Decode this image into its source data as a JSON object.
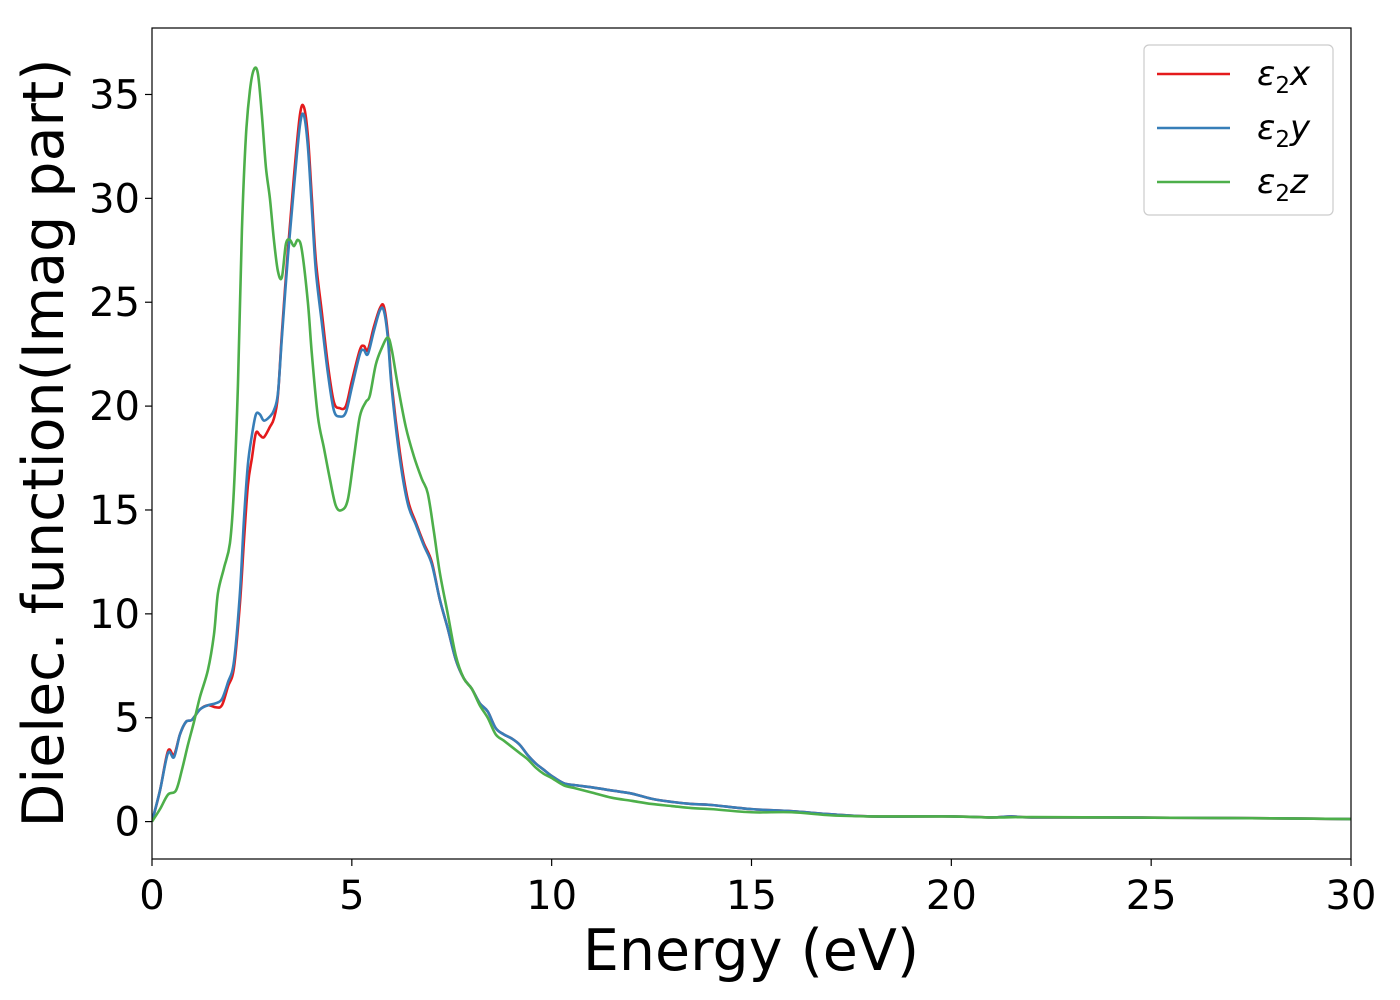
{
  "chart_data": {
    "type": "line",
    "xlabel": "Energy (eV)",
    "ylabel": "Dielec. function(Imag part)",
    "xlim": [
      0,
      30
    ],
    "ylim": [
      -1.8,
      38.2
    ],
    "xticks": [
      0,
      5,
      10,
      15,
      20,
      25,
      30
    ],
    "yticks": [
      0,
      5,
      10,
      15,
      20,
      25,
      30,
      35
    ],
    "xtick_labels": [
      "0",
      "5",
      "10",
      "15",
      "20",
      "25",
      "30"
    ],
    "ytick_labels": [
      "0",
      "5",
      "10",
      "15",
      "20",
      "25",
      "30",
      "35"
    ],
    "grid": false,
    "legend_position": "top-right",
    "series": [
      {
        "name": "ε2x",
        "legend": {
          "symbol": "ε",
          "sub": "2",
          "var": "x"
        },
        "color": "#e41a1c",
        "points": [
          [
            0,
            0
          ],
          [
            0.2,
            1.5
          ],
          [
            0.4,
            3.4
          ],
          [
            0.55,
            3.2
          ],
          [
            0.7,
            4.2
          ],
          [
            0.85,
            4.8
          ],
          [
            1.0,
            4.9
          ],
          [
            1.2,
            5.4
          ],
          [
            1.4,
            5.6
          ],
          [
            1.6,
            5.5
          ],
          [
            1.75,
            5.6
          ],
          [
            1.9,
            6.5
          ],
          [
            2.05,
            7.4
          ],
          [
            2.2,
            10.5
          ],
          [
            2.3,
            13.5
          ],
          [
            2.4,
            16.2
          ],
          [
            2.5,
            17.5
          ],
          [
            2.6,
            18.7
          ],
          [
            2.7,
            18.6
          ],
          [
            2.8,
            18.5
          ],
          [
            2.95,
            19.0
          ],
          [
            3.05,
            19.4
          ],
          [
            3.15,
            20.5
          ],
          [
            3.25,
            23.5
          ],
          [
            3.4,
            27.5
          ],
          [
            3.55,
            31.0
          ],
          [
            3.7,
            34.0
          ],
          [
            3.8,
            34.4
          ],
          [
            3.9,
            33.0
          ],
          [
            4.0,
            30.0
          ],
          [
            4.1,
            27.0
          ],
          [
            4.25,
            24.5
          ],
          [
            4.4,
            22.0
          ],
          [
            4.55,
            20.2
          ],
          [
            4.7,
            19.9
          ],
          [
            4.85,
            20.0
          ],
          [
            5.0,
            21.2
          ],
          [
            5.2,
            22.7
          ],
          [
            5.3,
            22.9
          ],
          [
            5.4,
            22.7
          ],
          [
            5.55,
            23.8
          ],
          [
            5.7,
            24.7
          ],
          [
            5.8,
            24.8
          ],
          [
            5.9,
            23.5
          ],
          [
            6.0,
            21.0
          ],
          [
            6.2,
            17.8
          ],
          [
            6.4,
            15.5
          ],
          [
            6.6,
            14.4
          ],
          [
            6.8,
            13.4
          ],
          [
            7.0,
            12.5
          ],
          [
            7.2,
            10.7
          ],
          [
            7.4,
            9.3
          ],
          [
            7.6,
            7.8
          ],
          [
            7.8,
            6.9
          ],
          [
            8.0,
            6.4
          ],
          [
            8.2,
            5.7
          ],
          [
            8.4,
            5.3
          ],
          [
            8.6,
            4.5
          ],
          [
            8.8,
            4.2
          ],
          [
            9.0,
            4.0
          ],
          [
            9.2,
            3.7
          ],
          [
            9.4,
            3.2
          ],
          [
            9.6,
            2.8
          ],
          [
            9.8,
            2.5
          ],
          [
            10.0,
            2.2
          ],
          [
            10.3,
            1.85
          ],
          [
            10.6,
            1.75
          ],
          [
            11.0,
            1.65
          ],
          [
            11.5,
            1.5
          ],
          [
            12.0,
            1.35
          ],
          [
            12.5,
            1.1
          ],
          [
            13.0,
            0.95
          ],
          [
            13.5,
            0.85
          ],
          [
            14.0,
            0.8
          ],
          [
            15.0,
            0.6
          ],
          [
            16.0,
            0.5
          ],
          [
            17.0,
            0.35
          ],
          [
            18.0,
            0.25
          ],
          [
            20.0,
            0.25
          ],
          [
            21.0,
            0.2
          ],
          [
            21.5,
            0.25
          ],
          [
            22.0,
            0.2
          ],
          [
            24.0,
            0.2
          ],
          [
            26.0,
            0.18
          ],
          [
            28.0,
            0.16
          ],
          [
            30.0,
            0.12
          ]
        ]
      },
      {
        "name": "ε2y",
        "legend": {
          "symbol": "ε",
          "sub": "2",
          "var": "y"
        },
        "color": "#377eb8",
        "points": [
          [
            0,
            0
          ],
          [
            0.2,
            1.5
          ],
          [
            0.4,
            3.3
          ],
          [
            0.55,
            3.1
          ],
          [
            0.7,
            4.2
          ],
          [
            0.85,
            4.8
          ],
          [
            1.0,
            4.9
          ],
          [
            1.2,
            5.4
          ],
          [
            1.4,
            5.6
          ],
          [
            1.6,
            5.7
          ],
          [
            1.75,
            5.9
          ],
          [
            1.9,
            6.7
          ],
          [
            2.05,
            7.7
          ],
          [
            2.2,
            11.0
          ],
          [
            2.3,
            14.5
          ],
          [
            2.4,
            17.2
          ],
          [
            2.5,
            18.6
          ],
          [
            2.6,
            19.6
          ],
          [
            2.7,
            19.6
          ],
          [
            2.8,
            19.3
          ],
          [
            2.95,
            19.5
          ],
          [
            3.05,
            19.8
          ],
          [
            3.15,
            20.6
          ],
          [
            3.25,
            23.3
          ],
          [
            3.4,
            27.2
          ],
          [
            3.55,
            30.5
          ],
          [
            3.7,
            33.5
          ],
          [
            3.8,
            34.0
          ],
          [
            3.9,
            32.5
          ],
          [
            4.0,
            29.5
          ],
          [
            4.1,
            26.5
          ],
          [
            4.25,
            24.0
          ],
          [
            4.4,
            21.6
          ],
          [
            4.55,
            19.8
          ],
          [
            4.7,
            19.5
          ],
          [
            4.85,
            19.7
          ],
          [
            5.0,
            20.9
          ],
          [
            5.2,
            22.5
          ],
          [
            5.3,
            22.7
          ],
          [
            5.4,
            22.5
          ],
          [
            5.55,
            23.6
          ],
          [
            5.7,
            24.6
          ],
          [
            5.8,
            24.6
          ],
          [
            5.9,
            23.3
          ],
          [
            6.0,
            20.8
          ],
          [
            6.2,
            17.5
          ],
          [
            6.4,
            15.3
          ],
          [
            6.6,
            14.3
          ],
          [
            6.8,
            13.3
          ],
          [
            7.0,
            12.4
          ],
          [
            7.2,
            10.7
          ],
          [
            7.4,
            9.3
          ],
          [
            7.6,
            7.8
          ],
          [
            7.8,
            6.9
          ],
          [
            8.0,
            6.4
          ],
          [
            8.2,
            5.7
          ],
          [
            8.4,
            5.3
          ],
          [
            8.6,
            4.5
          ],
          [
            8.8,
            4.2
          ],
          [
            9.0,
            4.0
          ],
          [
            9.2,
            3.7
          ],
          [
            9.4,
            3.2
          ],
          [
            9.6,
            2.8
          ],
          [
            9.8,
            2.5
          ],
          [
            10.0,
            2.2
          ],
          [
            10.3,
            1.85
          ],
          [
            10.6,
            1.75
          ],
          [
            11.0,
            1.65
          ],
          [
            11.5,
            1.5
          ],
          [
            12.0,
            1.35
          ],
          [
            12.5,
            1.1
          ],
          [
            13.0,
            0.95
          ],
          [
            13.5,
            0.85
          ],
          [
            14.0,
            0.8
          ],
          [
            15.0,
            0.6
          ],
          [
            16.0,
            0.5
          ],
          [
            17.0,
            0.35
          ],
          [
            18.0,
            0.25
          ],
          [
            20.0,
            0.25
          ],
          [
            21.0,
            0.2
          ],
          [
            21.5,
            0.25
          ],
          [
            22.0,
            0.2
          ],
          [
            24.0,
            0.2
          ],
          [
            26.0,
            0.18
          ],
          [
            28.0,
            0.16
          ],
          [
            30.0,
            0.12
          ]
        ]
      },
      {
        "name": "ε2z",
        "legend": {
          "symbol": "ε",
          "sub": "2",
          "var": "z"
        },
        "color": "#4daf4a",
        "points": [
          [
            0,
            0
          ],
          [
            0.2,
            0.6
          ],
          [
            0.4,
            1.3
          ],
          [
            0.6,
            1.5
          ],
          [
            0.75,
            2.5
          ],
          [
            0.9,
            3.7
          ],
          [
            1.05,
            4.8
          ],
          [
            1.2,
            6.0
          ],
          [
            1.4,
            7.3
          ],
          [
            1.55,
            9.0
          ],
          [
            1.65,
            11.0
          ],
          [
            1.8,
            12.2
          ],
          [
            1.95,
            13.4
          ],
          [
            2.05,
            16.0
          ],
          [
            2.15,
            21.0
          ],
          [
            2.25,
            28.5
          ],
          [
            2.35,
            33.0
          ],
          [
            2.45,
            35.2
          ],
          [
            2.55,
            36.2
          ],
          [
            2.65,
            36.0
          ],
          [
            2.75,
            34.0
          ],
          [
            2.85,
            31.5
          ],
          [
            2.95,
            30.0
          ],
          [
            3.05,
            28.0
          ],
          [
            3.15,
            26.5
          ],
          [
            3.25,
            26.2
          ],
          [
            3.35,
            27.8
          ],
          [
            3.45,
            28.0
          ],
          [
            3.55,
            27.7
          ],
          [
            3.65,
            28.0
          ],
          [
            3.75,
            27.5
          ],
          [
            3.9,
            25.0
          ],
          [
            4.0,
            22.5
          ],
          [
            4.15,
            19.5
          ],
          [
            4.3,
            18.0
          ],
          [
            4.45,
            16.5
          ],
          [
            4.6,
            15.2
          ],
          [
            4.75,
            15.0
          ],
          [
            4.9,
            15.5
          ],
          [
            5.05,
            17.5
          ],
          [
            5.2,
            19.5
          ],
          [
            5.35,
            20.2
          ],
          [
            5.45,
            20.5
          ],
          [
            5.6,
            22.0
          ],
          [
            5.75,
            22.8
          ],
          [
            5.9,
            23.3
          ],
          [
            6.0,
            22.7
          ],
          [
            6.15,
            21.0
          ],
          [
            6.35,
            19.0
          ],
          [
            6.55,
            17.6
          ],
          [
            6.75,
            16.5
          ],
          [
            6.9,
            15.8
          ],
          [
            7.05,
            14.0
          ],
          [
            7.2,
            12.0
          ],
          [
            7.4,
            10.0
          ],
          [
            7.6,
            8.0
          ],
          [
            7.8,
            6.9
          ],
          [
            8.0,
            6.4
          ],
          [
            8.2,
            5.6
          ],
          [
            8.4,
            5.0
          ],
          [
            8.6,
            4.2
          ],
          [
            8.8,
            3.9
          ],
          [
            9.0,
            3.6
          ],
          [
            9.2,
            3.3
          ],
          [
            9.4,
            3.0
          ],
          [
            9.6,
            2.6
          ],
          [
            9.8,
            2.3
          ],
          [
            10.0,
            2.1
          ],
          [
            10.3,
            1.75
          ],
          [
            10.6,
            1.6
          ],
          [
            11.0,
            1.4
          ],
          [
            11.5,
            1.15
          ],
          [
            12.0,
            1.0
          ],
          [
            12.5,
            0.85
          ],
          [
            13.0,
            0.75
          ],
          [
            13.5,
            0.65
          ],
          [
            14.0,
            0.6
          ],
          [
            15.0,
            0.45
          ],
          [
            16.0,
            0.45
          ],
          [
            17.0,
            0.3
          ],
          [
            18.0,
            0.25
          ],
          [
            20.0,
            0.25
          ],
          [
            21.0,
            0.2
          ],
          [
            22.0,
            0.22
          ],
          [
            24.0,
            0.2
          ],
          [
            26.0,
            0.18
          ],
          [
            28.0,
            0.16
          ],
          [
            30.0,
            0.12
          ]
        ]
      }
    ]
  }
}
